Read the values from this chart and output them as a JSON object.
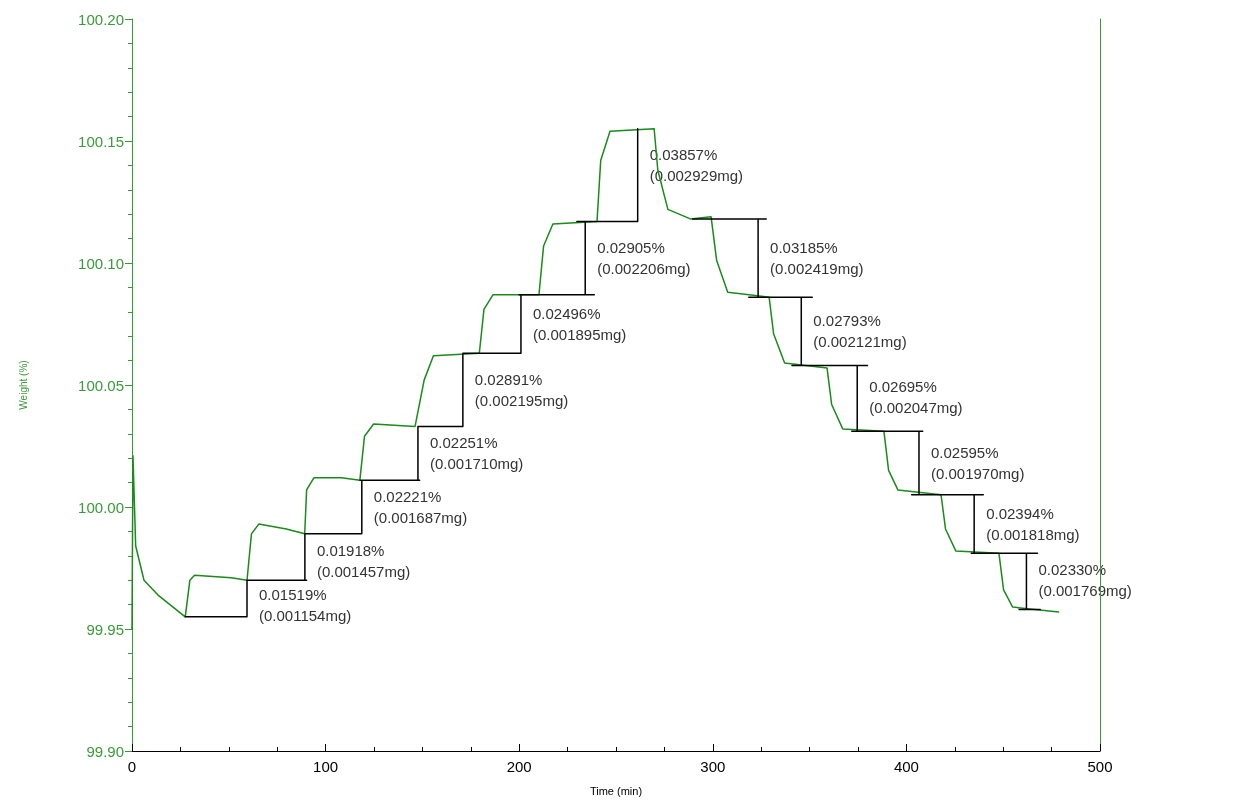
{
  "chart_data": {
    "type": "line",
    "xlabel": "Time (min)",
    "ylabel": "Weight (%)",
    "xlim": [
      0,
      500
    ],
    "xticks": [
      0,
      100,
      200,
      300,
      400,
      500
    ],
    "ylim": [
      99.9,
      100.2
    ],
    "yticks": [
      {
        "value": 99.9,
        "label": "99.90"
      },
      {
        "value": 99.95,
        "label": "99.95"
      },
      {
        "value": 100,
        "label": "100.00"
      },
      {
        "value": 100.05,
        "label": "100.05"
      },
      {
        "value": 100.1,
        "label": "100.10"
      },
      {
        "value": 100.15,
        "label": "100.15"
      },
      {
        "value": 100.2,
        "label": "100.20"
      }
    ],
    "grid": false,
    "marker": "none",
    "line_style": "solid",
    "series": [
      {
        "color": "#1a8a1a",
        "x": [
          0,
          0.5,
          1.9,
          6.2,
          13.3,
          27.5,
          29.9,
          32.3,
          51.3,
          59.4,
          61.7,
          65.5,
          79.7,
          89.2,
          90.2,
          94.0,
          108.2,
          117.7,
          120.1,
          124.8,
          146.2,
          150.9,
          155.7,
          179.4,
          181.8,
          186.5,
          210.2,
          212.6,
          217.4,
          240.2,
          242.1,
          246.9,
          269.7,
          271.6,
          276.8,
          288.7,
          299.1,
          302.0,
          307.7,
          329.1,
          331.4,
          337.1,
          359.0,
          361.4,
          367.1,
          388.4,
          390.8,
          395.6,
          417.9,
          420.2,
          425.5,
          447.8,
          450.2,
          454.9,
          478.6
        ],
        "values": [
          99.95,
          100.021,
          99.984,
          99.97,
          99.964,
          99.955,
          99.97,
          99.972,
          99.971,
          99.97,
          99.989,
          99.993,
          99.991,
          99.989,
          100.007,
          100.012,
          100.012,
          100.011,
          100.029,
          100.034,
          100.033,
          100.052,
          100.062,
          100.063,
          100.081,
          100.087,
          100.087,
          100.107,
          100.116,
          100.117,
          100.142,
          100.154,
          100.155,
          100.138,
          100.122,
          100.118,
          100.119,
          100.101,
          100.088,
          100.086,
          100.071,
          100.059,
          100.057,
          100.042,
          100.032,
          100.031,
          100.015,
          100.007,
          100.005,
          99.991,
          99.982,
          99.981,
          99.966,
          99.959,
          99.957
        ]
      },
      {
        "color": "#000000",
        "x": [
          27.5,
          59.4,
          null,
          59.4,
          59.4,
          null,
          59.4,
          90.2,
          null,
          89.3,
          89.3,
          null,
          89.3,
          118.7,
          null,
          118.7,
          118.7,
          null,
          117.8,
          148.6,
          null,
          147.7,
          147.7,
          null,
          147.7,
          170.9,
          null,
          170.9,
          170.9,
          null,
          170.9,
          200.9,
          null,
          200.9,
          200.9,
          null,
          199.9,
          238.8,
          null,
          234.1,
          234.1,
          null,
          229.8,
          261.2,
          null,
          261.2,
          261.2,
          null,
          289.6,
          327.6,
          null,
          323.4,
          323.4,
          null,
          318.6,
          351.4,
          null,
          345.7,
          345.7,
          null,
          340.9,
          379.9,
          null,
          374.6,
          374.6,
          null,
          371.8,
          408.4,
          null,
          406.5,
          406.5,
          null,
          402.7,
          439.7,
          null,
          435.0,
          435.0,
          null,
          433.5,
          467.7,
          null,
          462.0,
          462.0,
          null,
          458.2,
          469.1
        ],
        "values": [
          99.955,
          99.955,
          null,
          99.955,
          99.97,
          null,
          99.97,
          99.97,
          null,
          99.97,
          99.989,
          null,
          99.989,
          99.989,
          null,
          99.989,
          100.011,
          null,
          100.011,
          100.011,
          null,
          100.011,
          100.033,
          null,
          100.033,
          100.033,
          null,
          100.033,
          100.063,
          null,
          100.063,
          100.063,
          null,
          100.063,
          100.087,
          null,
          100.087,
          100.087,
          null,
          100.087,
          100.117,
          null,
          100.117,
          100.117,
          null,
          100.117,
          100.155,
          null,
          100.118,
          100.118,
          null,
          100.118,
          100.086,
          null,
          100.086,
          100.086,
          null,
          100.086,
          100.058,
          null,
          100.058,
          100.058,
          null,
          100.058,
          100.031,
          null,
          100.031,
          100.031,
          null,
          100.031,
          100.005,
          null,
          100.005,
          100.005,
          null,
          100.005,
          99.981,
          null,
          99.981,
          99.981,
          null,
          99.981,
          99.958,
          null,
          99.958,
          99.958
        ]
      }
    ],
    "annotations": [
      {
        "text": "0.01519%\n(0.001154mg)",
        "x": 59.4,
        "y": 99.96
      },
      {
        "text": "0.01918%\n(0.001457mg)",
        "x": 89.3,
        "y": 99.978
      },
      {
        "text": "0.02221%\n(0.001687mg)",
        "x": 118.7,
        "y": 100.0
      },
      {
        "text": "0.02251%\n(0.001710mg)",
        "x": 147.7,
        "y": 100.022
      },
      {
        "text": "0.02891%\n(0.002195mg)",
        "x": 170.9,
        "y": 100.048
      },
      {
        "text": "0.02496%\n(0.001895mg)",
        "x": 200.9,
        "y": 100.075
      },
      {
        "text": "0.02905%\n(0.002206mg)",
        "x": 234.1,
        "y": 100.102
      },
      {
        "text": "0.03857%\n(0.002929mg)",
        "x": 261.2,
        "y": 100.14
      },
      {
        "text": "0.03185%\n(0.002419mg)",
        "x": 323.4,
        "y": 100.102
      },
      {
        "text": "0.02793%\n(0.002121mg)",
        "x": 345.7,
        "y": 100.072
      },
      {
        "text": "0.02695%\n(0.002047mg)",
        "x": 374.6,
        "y": 100.045
      },
      {
        "text": "0.02595%\n(0.001970mg)",
        "x": 406.5,
        "y": 100.018
      },
      {
        "text": "0.02394%\n(0.001818mg)",
        "x": 435.0,
        "y": 99.993
      },
      {
        "text": "0.02330%\n(0.001769mg)",
        "x": 462.0,
        "y": 99.97
      }
    ]
  }
}
